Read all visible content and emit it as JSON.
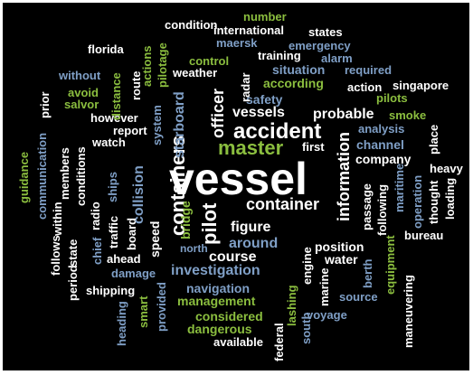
{
  "words": [
    {
      "id": "vessel",
      "text": "vessel",
      "color": "white"
    },
    {
      "id": "master",
      "text": "master",
      "color": "green"
    },
    {
      "id": "accident",
      "text": "accident",
      "color": "white"
    },
    {
      "id": "container",
      "text": "container",
      "color": "white"
    },
    {
      "id": "containers",
      "text": "containers",
      "color": "white"
    },
    {
      "id": "pilot",
      "text": "pilot",
      "color": "white"
    },
    {
      "id": "officer",
      "text": "officer",
      "color": "white"
    },
    {
      "id": "vessels",
      "text": "vessels",
      "color": "white"
    },
    {
      "id": "information",
      "text": "information",
      "color": "white"
    },
    {
      "id": "figure",
      "text": "figure",
      "color": "white"
    },
    {
      "id": "course",
      "text": "course",
      "color": "white"
    },
    {
      "id": "investigation",
      "text": "investigation",
      "color": "blue"
    },
    {
      "id": "around",
      "text": "around",
      "color": "blue"
    },
    {
      "id": "collision",
      "text": "collision",
      "color": "blue"
    },
    {
      "id": "starboard",
      "text": "starboard",
      "color": "blue"
    },
    {
      "id": "speed",
      "text": "speed",
      "color": "white"
    },
    {
      "id": "bridge",
      "text": "bridge",
      "color": "green"
    },
    {
      "id": "probable",
      "text": "probable",
      "color": "white"
    },
    {
      "id": "navigation",
      "text": "navigation",
      "color": "blue"
    },
    {
      "id": "management",
      "text": "management",
      "color": "green"
    },
    {
      "id": "considered",
      "text": "considered",
      "color": "green"
    },
    {
      "id": "dangerous",
      "text": "dangerous",
      "color": "green"
    },
    {
      "id": "available",
      "text": "available",
      "color": "white"
    },
    {
      "id": "position",
      "text": "position",
      "color": "white"
    },
    {
      "id": "water",
      "text": "water",
      "color": "white"
    },
    {
      "id": "company",
      "text": "company",
      "color": "white"
    },
    {
      "id": "channel",
      "text": "channel",
      "color": "blue"
    },
    {
      "id": "safety",
      "text": "safety",
      "color": "blue"
    },
    {
      "id": "according",
      "text": "according",
      "color": "green"
    },
    {
      "id": "situation",
      "text": "situation",
      "color": "blue"
    },
    {
      "id": "training",
      "text": "training",
      "color": "white"
    },
    {
      "id": "control",
      "text": "control",
      "color": "green"
    },
    {
      "id": "weather",
      "text": "weather",
      "color": "white"
    },
    {
      "id": "emergency",
      "text": "emergency",
      "color": "blue"
    },
    {
      "id": "maersk",
      "text": "maersk",
      "color": "blue"
    },
    {
      "id": "international",
      "text": "international",
      "color": "white"
    },
    {
      "id": "condition",
      "text": "condition",
      "color": "white"
    },
    {
      "id": "number",
      "text": "number",
      "color": "green"
    },
    {
      "id": "states",
      "text": "states",
      "color": "white"
    },
    {
      "id": "florida",
      "text": "florida",
      "color": "white"
    },
    {
      "id": "without",
      "text": "without",
      "color": "blue"
    },
    {
      "id": "alarm",
      "text": "alarm",
      "color": "blue"
    },
    {
      "id": "required",
      "text": "required",
      "color": "blue"
    },
    {
      "id": "action",
      "text": "action",
      "color": "white"
    },
    {
      "id": "singapore",
      "text": "singapore",
      "color": "white"
    },
    {
      "id": "pilots",
      "text": "pilots",
      "color": "green"
    },
    {
      "id": "smoke",
      "text": "smoke",
      "color": "green"
    },
    {
      "id": "analysis",
      "text": "analysis",
      "color": "blue"
    },
    {
      "id": "however",
      "text": "however",
      "color": "white"
    },
    {
      "id": "report",
      "text": "report",
      "color": "white"
    },
    {
      "id": "watch",
      "text": "watch",
      "color": "white"
    },
    {
      "id": "avoid",
      "text": "avoid",
      "color": "green"
    },
    {
      "id": "salvor",
      "text": "salvor",
      "color": "green"
    },
    {
      "id": "first",
      "text": "first",
      "color": "white"
    },
    {
      "id": "heavy",
      "text": "heavy",
      "color": "white"
    },
    {
      "id": "bureau",
      "text": "bureau",
      "color": "white"
    },
    {
      "id": "ahead",
      "text": "ahead",
      "color": "white"
    },
    {
      "id": "damage",
      "text": "damage",
      "color": "blue"
    },
    {
      "id": "shipping",
      "text": "shipping",
      "color": "white"
    },
    {
      "id": "north",
      "text": "north",
      "color": "blue"
    },
    {
      "id": "source",
      "text": "source",
      "color": "blue"
    },
    {
      "id": "voyage",
      "text": "voyage",
      "color": "blue"
    },
    {
      "id": "board",
      "text": "board",
      "color": "white"
    },
    {
      "id": "ships",
      "text": "ships",
      "color": "blue"
    },
    {
      "id": "members",
      "text": "members",
      "color": "white"
    },
    {
      "id": "conditions",
      "text": "conditions",
      "color": "white"
    },
    {
      "id": "guidance",
      "text": "guidance",
      "color": "green"
    },
    {
      "id": "communication",
      "text": "communication",
      "color": "blue"
    },
    {
      "id": "within",
      "text": "within",
      "color": "white"
    },
    {
      "id": "radio",
      "text": "radio",
      "color": "white"
    },
    {
      "id": "traffic",
      "text": "traffic",
      "color": "white"
    },
    {
      "id": "chief",
      "text": "chief",
      "color": "blue"
    },
    {
      "id": "follows",
      "text": "follows",
      "color": "white"
    },
    {
      "id": "state",
      "text": "state",
      "color": "white"
    },
    {
      "id": "period",
      "text": "period",
      "color": "white"
    },
    {
      "id": "heading",
      "text": "heading",
      "color": "blue"
    },
    {
      "id": "smart",
      "text": "smart",
      "color": "green"
    },
    {
      "id": "provided",
      "text": "provided",
      "color": "blue"
    },
    {
      "id": "prior",
      "text": "prior",
      "color": "white"
    },
    {
      "id": "distance",
      "text": "distance",
      "color": "green"
    },
    {
      "id": "route",
      "text": "route",
      "color": "white"
    },
    {
      "id": "actions",
      "text": "actions",
      "color": "green"
    },
    {
      "id": "pilotage",
      "text": "pilotage",
      "color": "green"
    },
    {
      "id": "system",
      "text": "system",
      "color": "blue"
    },
    {
      "id": "radar",
      "text": "radar",
      "color": "white"
    },
    {
      "id": "engine",
      "text": "engine",
      "color": "white"
    },
    {
      "id": "marine",
      "text": "marine",
      "color": "white"
    },
    {
      "id": "lashing",
      "text": "lashing",
      "color": "green"
    },
    {
      "id": "federal",
      "text": "federal",
      "color": "white"
    },
    {
      "id": "south",
      "text": "south",
      "color": "blue"
    },
    {
      "id": "berth",
      "text": "berth",
      "color": "blue"
    },
    {
      "id": "equipment",
      "text": "equipment",
      "color": "green"
    },
    {
      "id": "maneuvering",
      "text": "maneuvering",
      "color": "white"
    },
    {
      "id": "passage",
      "text": "passage",
      "color": "white"
    },
    {
      "id": "following",
      "text": "following",
      "color": "white"
    },
    {
      "id": "maritime",
      "text": "maritime",
      "color": "blue"
    },
    {
      "id": "operation",
      "text": "operation",
      "color": "blue"
    },
    {
      "id": "thought",
      "text": "thought",
      "color": "white"
    },
    {
      "id": "loading",
      "text": "loading",
      "color": "white"
    },
    {
      "id": "place",
      "text": "place",
      "color": "white"
    }
  ],
  "palette": {
    "background": "#000000",
    "white": "#ffffff",
    "green": "#8bbe3f",
    "blue": "#7f9fc6",
    "gray": "#a9a9a9"
  }
}
